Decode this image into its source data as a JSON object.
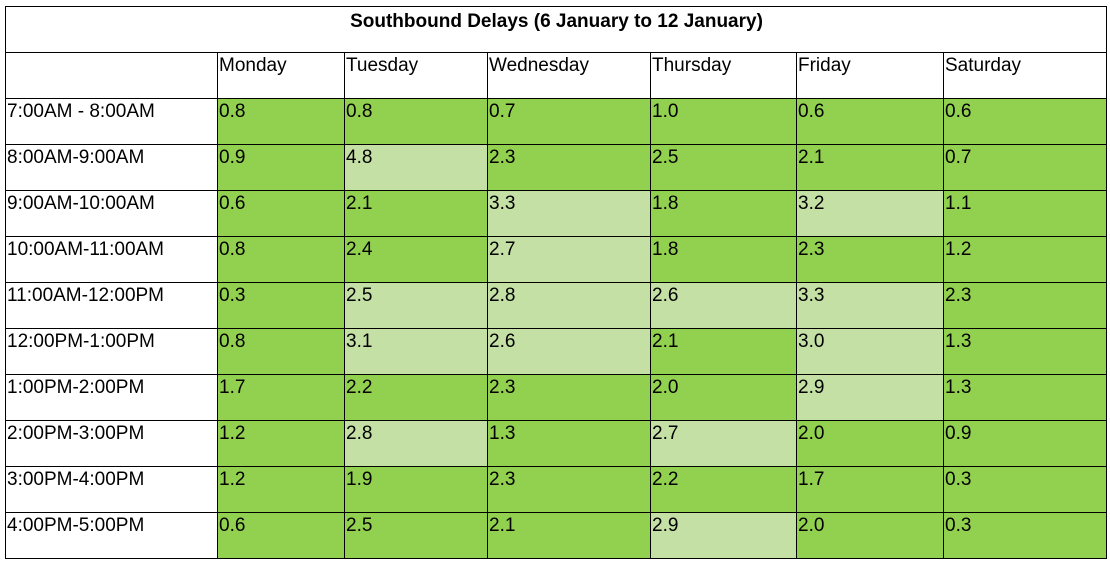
{
  "table": {
    "title": "Southbound Delays (6 January to 12 January)",
    "days": [
      "Monday",
      "Tuesday",
      "Wednesday",
      "Thursday",
      "Friday",
      "Saturday"
    ],
    "colors": {
      "dark_green": "#92d050",
      "light_green": "#c4e0a5"
    },
    "rows": [
      {
        "time": "7:00AM - 8:00AM",
        "values": [
          "0.8",
          "0.8",
          "0.7",
          "1.0",
          "0.6",
          "0.6"
        ],
        "shade": [
          "dark",
          "dark",
          "dark",
          "dark",
          "dark",
          "dark"
        ]
      },
      {
        "time": "8:00AM-9:00AM",
        "values": [
          "0.9",
          "4.8",
          "2.3",
          "2.5",
          "2.1",
          "0.7"
        ],
        "shade": [
          "dark",
          "light",
          "dark",
          "dark",
          "dark",
          "dark"
        ]
      },
      {
        "time": "9:00AM-10:00AM",
        "values": [
          "0.6",
          "2.1",
          "3.3",
          "1.8",
          "3.2",
          "1.1"
        ],
        "shade": [
          "dark",
          "dark",
          "light",
          "dark",
          "light",
          "dark"
        ]
      },
      {
        "time": "10:00AM-11:00AM",
        "values": [
          "0.8",
          "2.4",
          "2.7",
          "1.8",
          "2.3",
          "1.2"
        ],
        "shade": [
          "dark",
          "dark",
          "light",
          "dark",
          "dark",
          "dark"
        ]
      },
      {
        "time": "11:00AM-12:00PM",
        "values": [
          "0.3",
          "2.5",
          "2.8",
          "2.6",
          "3.3",
          "2.3"
        ],
        "shade": [
          "dark",
          "light",
          "light",
          "light",
          "light",
          "dark"
        ]
      },
      {
        "time": "12:00PM-1:00PM",
        "values": [
          "0.8",
          "3.1",
          "2.6",
          "2.1",
          "3.0",
          "1.3"
        ],
        "shade": [
          "dark",
          "light",
          "light",
          "dark",
          "light",
          "dark"
        ]
      },
      {
        "time": "1:00PM-2:00PM",
        "values": [
          "1.7",
          "2.2",
          "2.3",
          "2.0",
          "2.9",
          "1.3"
        ],
        "shade": [
          "dark",
          "dark",
          "dark",
          "dark",
          "light",
          "dark"
        ]
      },
      {
        "time": "2:00PM-3:00PM",
        "values": [
          "1.2",
          "2.8",
          "1.3",
          "2.7",
          "2.0",
          "0.9"
        ],
        "shade": [
          "dark",
          "light",
          "dark",
          "light",
          "dark",
          "dark"
        ]
      },
      {
        "time": "3:00PM-4:00PM",
        "values": [
          "1.2",
          "1.9",
          "2.3",
          "2.2",
          "1.7",
          "0.3"
        ],
        "shade": [
          "dark",
          "dark",
          "dark",
          "dark",
          "dark",
          "dark"
        ]
      },
      {
        "time": "4:00PM-5:00PM",
        "values": [
          "0.6",
          "2.5",
          "2.1",
          "2.9",
          "2.0",
          "0.3"
        ],
        "shade": [
          "dark",
          "dark",
          "dark",
          "light",
          "dark",
          "dark"
        ]
      }
    ]
  }
}
